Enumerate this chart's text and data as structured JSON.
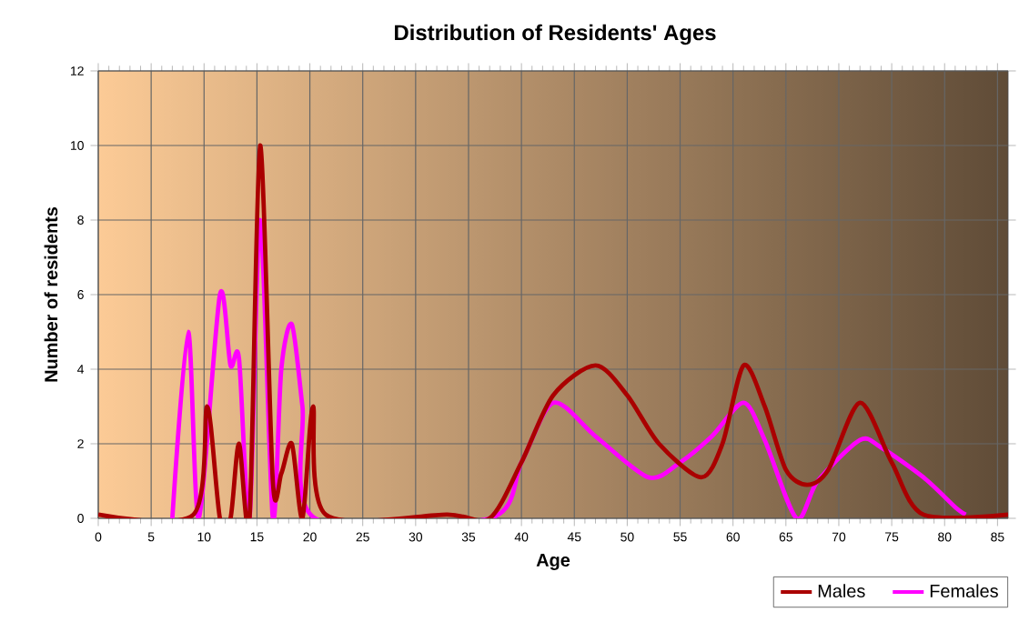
{
  "chart_data": {
    "type": "line",
    "title": "Distribution of Residents' Ages",
    "xlabel": "Age",
    "ylabel": "Number of residents",
    "xlim": [
      0,
      86
    ],
    "ylim": [
      0,
      12
    ],
    "xticks": [
      0,
      5,
      10,
      15,
      20,
      25,
      30,
      35,
      40,
      45,
      50,
      55,
      60,
      65,
      70,
      75,
      80,
      85
    ],
    "yticks": [
      0,
      2,
      4,
      6,
      8,
      10,
      12
    ],
    "grid": true,
    "legend": "bottom right",
    "marker": "none",
    "line_style": "solid",
    "series": [
      {
        "name": "Males",
        "color": "#aa0000",
        "x": [
          0,
          9,
          10.3,
          11.5,
          12.5,
          13.3,
          14.3,
          15.3,
          16.5,
          17.3,
          18.3,
          19.3,
          20.3,
          21.5,
          33,
          37,
          40,
          43,
          47,
          50,
          53,
          57,
          59,
          61,
          63,
          65,
          67,
          69,
          72,
          75,
          78,
          86
        ],
        "values": [
          0.1,
          0.1,
          3,
          0,
          0,
          2,
          0,
          10,
          1,
          1.2,
          2,
          0,
          3,
          0.1,
          0.1,
          0,
          1.5,
          3.3,
          4.1,
          3.3,
          2,
          1.1,
          2,
          4.1,
          3,
          1.3,
          0.9,
          1.3,
          3.1,
          1.5,
          0.1,
          0.1
        ]
      },
      {
        "name": "Females",
        "color": "#ff00ff",
        "x": [
          7,
          8.5,
          9.5,
          11.5,
          12.5,
          13.3,
          14.3,
          15.3,
          16.5,
          17.3,
          18.3,
          19.3,
          20.5,
          37,
          40,
          43,
          47,
          52,
          55,
          58,
          61,
          63,
          66,
          68,
          72,
          74,
          78,
          81,
          82
        ],
        "values": [
          0,
          5,
          0,
          6,
          4.1,
          4.3,
          0,
          8,
          0,
          4,
          5.2,
          3,
          0,
          0,
          1.5,
          3.1,
          2.2,
          1.1,
          1.5,
          2.2,
          3.1,
          2.1,
          0,
          1,
          2.1,
          1.9,
          1.1,
          0.3,
          0.1
        ]
      }
    ]
  }
}
